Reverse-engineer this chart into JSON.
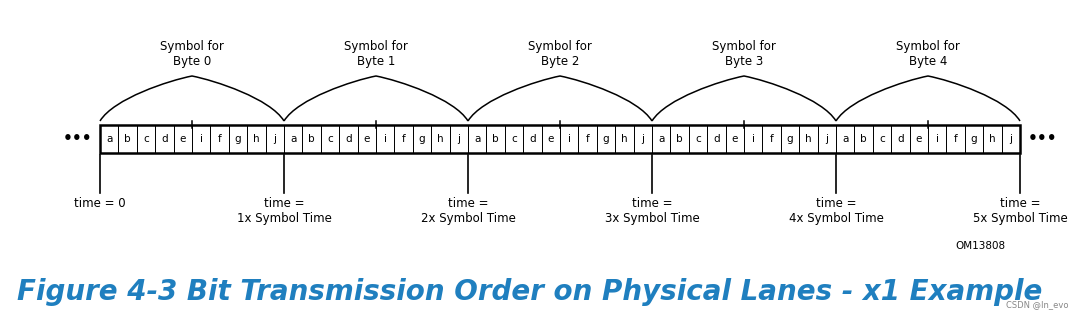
{
  "title": "Figure 4-3 Bit Transmission Order on Physical Lanes - x1 Example",
  "title_color": "#1F7FBF",
  "title_fontsize": 20,
  "om_label": "OM13808",
  "watermark": "CSDN @In_evo",
  "symbol_labels": [
    "Symbol for\nByte 0",
    "Symbol for\nByte 1",
    "Symbol for\nByte 2",
    "Symbol for\nByte 3",
    "Symbol for\nByte 4"
  ],
  "bits": [
    "a",
    "b",
    "c",
    "d",
    "e",
    "i",
    "f",
    "g",
    "h",
    "j",
    "a",
    "b",
    "c",
    "d",
    "e",
    "i",
    "f",
    "g",
    "h",
    "j",
    "a",
    "b",
    "c",
    "d",
    "e",
    "i",
    "f",
    "g",
    "h",
    "j",
    "a",
    "b",
    "c",
    "d",
    "e",
    "i",
    "f",
    "g",
    "h",
    "j",
    "a",
    "b",
    "c",
    "d",
    "e",
    "i",
    "f",
    "g",
    "h",
    "j"
  ],
  "time_labels": [
    "time = 0",
    "time =\n1x Symbol Time",
    "time =\n2x Symbol Time",
    "time =\n3x Symbol Time",
    "time =\n4x Symbol Time",
    "time =\n5x Symbol Time"
  ],
  "bg_color": "#ffffff",
  "box_color": "#000000",
  "text_color": "#000000",
  "brace_color": "#000000"
}
